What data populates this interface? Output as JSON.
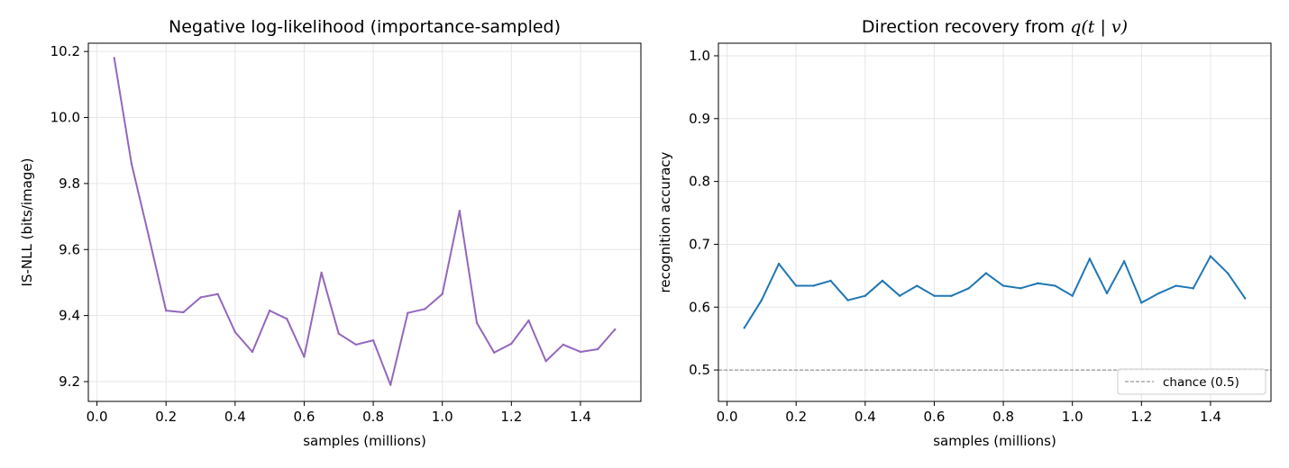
{
  "chart_data": [
    {
      "type": "line",
      "title": "Negative log-likelihood (importance-sampled)",
      "xlabel": "samples (millions)",
      "ylabel": "IS-NLL  (bits/image)",
      "xlim": [
        -0.025,
        1.575
      ],
      "ylim": [
        9.14,
        10.225
      ],
      "xticks": [
        0.0,
        0.2,
        0.4,
        0.6,
        0.8,
        1.0,
        1.2,
        1.4
      ],
      "yticks": [
        9.2,
        9.4,
        9.6,
        9.8,
        10.0,
        10.2
      ],
      "grid": true,
      "series": [
        {
          "color": "#9467bd",
          "x": [
            0.05,
            0.1,
            0.15,
            0.2,
            0.25,
            0.3,
            0.35,
            0.4,
            0.45,
            0.5,
            0.55,
            0.6,
            0.65,
            0.7,
            0.75,
            0.8,
            0.85,
            0.9,
            0.95,
            1.0,
            1.05,
            1.1,
            1.15,
            1.2,
            1.25,
            1.3,
            1.35,
            1.4,
            1.45,
            1.5
          ],
          "values": [
            10.18,
            9.86,
            9.64,
            9.415,
            9.41,
            9.455,
            9.465,
            9.35,
            9.29,
            9.415,
            9.39,
            9.275,
            9.53,
            9.345,
            9.312,
            9.325,
            9.19,
            9.408,
            9.42,
            9.465,
            9.717,
            9.378,
            9.288,
            9.315,
            9.385,
            9.262,
            9.312,
            9.29,
            9.298,
            9.358
          ]
        }
      ]
    },
    {
      "type": "line",
      "title": "Direction recovery from ",
      "title_math": "q(t | v)",
      "xlabel": "samples (millions)",
      "ylabel": "recognition accuracy",
      "xlim": [
        -0.025,
        1.575
      ],
      "ylim": [
        0.45,
        1.02
      ],
      "xticks": [
        0.0,
        0.2,
        0.4,
        0.6,
        0.8,
        1.0,
        1.2,
        1.4
      ],
      "yticks": [
        0.5,
        0.6,
        0.7,
        0.8,
        0.9,
        1.0
      ],
      "grid": true,
      "legend": {
        "position": "lower-right",
        "entries": [
          "chance (0.5)"
        ]
      },
      "reference_line": {
        "y": 0.5,
        "color": "#808080",
        "style": "dashed",
        "label": "chance (0.5)"
      },
      "series": [
        {
          "color": "#1f77b4",
          "x": [
            0.05,
            0.1,
            0.15,
            0.2,
            0.25,
            0.3,
            0.35,
            0.4,
            0.45,
            0.5,
            0.55,
            0.6,
            0.65,
            0.7,
            0.75,
            0.8,
            0.85,
            0.9,
            0.95,
            1.0,
            1.05,
            1.1,
            1.15,
            1.2,
            1.25,
            1.3,
            1.35,
            1.4,
            1.45,
            1.5
          ],
          "values": [
            0.567,
            0.611,
            0.669,
            0.634,
            0.634,
            0.642,
            0.611,
            0.618,
            0.642,
            0.618,
            0.634,
            0.618,
            0.618,
            0.63,
            0.654,
            0.634,
            0.63,
            0.638,
            0.634,
            0.618,
            0.677,
            0.622,
            0.673,
            0.607,
            0.622,
            0.634,
            0.63,
            0.681,
            0.654,
            0.614
          ]
        }
      ]
    }
  ]
}
